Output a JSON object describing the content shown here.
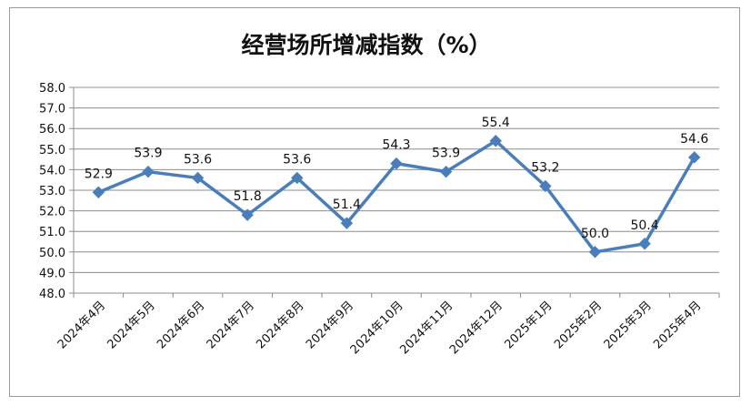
{
  "chart_data": {
    "type": "line",
    "title": "经营场所增减指数（%）",
    "xlabel": "",
    "ylabel": "",
    "categories": [
      "2024年4月",
      "2024年5月",
      "2024年6月",
      "2024年7月",
      "2024年8月",
      "2024年9月",
      "2024年10月",
      "2024年11月",
      "2024年12月",
      "2025年1月",
      "2025年2月",
      "2025年3月",
      "2025年4月"
    ],
    "series": [
      {
        "values": [
          52.9,
          53.9,
          53.6,
          51.8,
          53.6,
          51.4,
          54.3,
          53.9,
          55.4,
          53.2,
          50.0,
          50.4,
          54.6
        ],
        "color": "#4a7ebb",
        "marker": "diamond",
        "data_labels": [
          "52.9",
          "53.9",
          "53.6",
          "51.8",
          "53.6",
          "51.4",
          "54.3",
          "53.9",
          "55.4",
          "53.2",
          "50.0",
          "50.4",
          "54.6"
        ]
      }
    ],
    "ylim": [
      48.0,
      58.0
    ],
    "yticks": [
      "48.0",
      "49.0",
      "50.0",
      "51.0",
      "52.0",
      "53.0",
      "54.0",
      "55.0",
      "56.0",
      "57.0",
      "58.0"
    ],
    "grid": true,
    "legend": "none"
  }
}
